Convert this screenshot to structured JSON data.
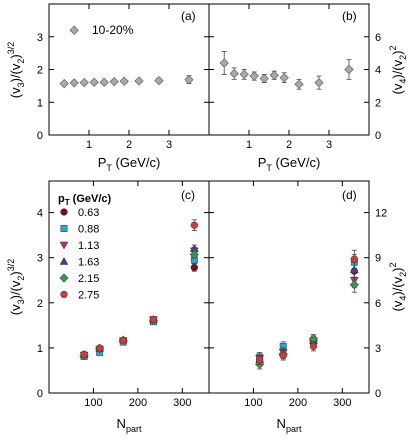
{
  "chart_data": [
    {
      "type": "scatter",
      "panel_label": "(a)",
      "annotation": "10-20%",
      "xlabel": "P_T (GeV/c)",
      "ylabel": "(v_3)/(v_2)^{3/2}",
      "xlim": [
        0,
        4
      ],
      "ylim": [
        0,
        4
      ],
      "x_ticks": [
        1,
        2,
        3
      ],
      "y_ticks": [
        0,
        1,
        2,
        3
      ],
      "series": [
        {
          "marker": "diamond",
          "color": "#a8a8a8",
          "x": [
            0.38,
            0.63,
            0.88,
            1.13,
            1.38,
            1.63,
            1.88,
            2.25,
            2.75,
            3.5
          ],
          "y": [
            1.57,
            1.59,
            1.6,
            1.61,
            1.61,
            1.63,
            1.64,
            1.65,
            1.66,
            1.69
          ],
          "err": [
            0.02,
            0.02,
            0.02,
            0.02,
            0.02,
            0.02,
            0.02,
            0.03,
            0.04,
            0.12
          ]
        }
      ],
      "legend_marker": {
        "x": 0.63,
        "y": 3.2,
        "marker": "diamond",
        "color": "#a8a8a8"
      }
    },
    {
      "type": "scatter",
      "panel_label": "(b)",
      "xlabel": "P_T (GeV/c)",
      "ylabel": "(v_4)/(v_2)^2",
      "xlim": [
        0,
        4
      ],
      "ylim": [
        0,
        8
      ],
      "x_ticks": [
        1,
        2,
        3
      ],
      "y_ticks": [
        0,
        2,
        4,
        6
      ],
      "series": [
        {
          "marker": "diamond",
          "color": "#a8a8a8",
          "x": [
            0.38,
            0.63,
            0.88,
            1.13,
            1.38,
            1.63,
            1.88,
            2.25,
            2.75,
            3.5
          ],
          "y": [
            4.4,
            3.75,
            3.7,
            3.6,
            3.45,
            3.65,
            3.5,
            3.1,
            3.2,
            4.0
          ],
          "err": [
            0.7,
            0.35,
            0.3,
            0.25,
            0.25,
            0.25,
            0.3,
            0.3,
            0.4,
            0.6
          ]
        }
      ]
    },
    {
      "type": "scatter",
      "panel_label": "(c)",
      "xlabel": "N_part",
      "ylabel": "(v_3)/(v_2)^{3/2}",
      "xlim": [
        0,
        360
      ],
      "ylim": [
        0,
        4.7
      ],
      "x_ticks": [
        100,
        200,
        300
      ],
      "y_ticks": [
        0,
        1,
        2,
        3,
        4
      ],
      "legend_title": "p_T (GeV/c)",
      "legend_position": "top-left",
      "series": [
        {
          "name": "0.63",
          "marker": "circle",
          "color": "#7a0d16",
          "x": [
            79,
            114,
            167,
            235,
            327
          ],
          "y": [
            0.82,
            0.95,
            1.16,
            1.6,
            2.78
          ],
          "err": [
            0.05,
            0.05,
            0.05,
            0.05,
            0.08
          ]
        },
        {
          "name": "0.88",
          "marker": "square",
          "color": "#2aa6d6",
          "x": [
            79,
            114,
            167,
            235,
            327
          ],
          "y": [
            0.81,
            0.9,
            1.13,
            1.58,
            2.95
          ],
          "err": [
            0.05,
            0.05,
            0.05,
            0.05,
            0.08
          ]
        },
        {
          "name": "1.13",
          "marker": "tri-down",
          "color": "#b52a86",
          "x": [
            79,
            114,
            167,
            235,
            327
          ],
          "y": [
            0.84,
            0.97,
            1.16,
            1.63,
            3.15
          ],
          "err": [
            0.05,
            0.05,
            0.05,
            0.05,
            0.08
          ]
        },
        {
          "name": "1.63",
          "marker": "tri-up",
          "color": "#3d4496",
          "x": [
            79,
            114,
            167,
            235,
            327
          ],
          "y": [
            0.85,
            0.99,
            1.18,
            1.63,
            3.2
          ],
          "err": [
            0.05,
            0.05,
            0.05,
            0.05,
            0.08
          ]
        },
        {
          "name": "2.15",
          "marker": "diamond",
          "color": "#2c9a4a",
          "x": [
            79,
            114,
            167,
            235,
            327
          ],
          "y": [
            0.83,
            0.98,
            1.17,
            1.61,
            3.07
          ],
          "err": [
            0.05,
            0.05,
            0.05,
            0.05,
            0.08
          ]
        },
        {
          "name": "2.75",
          "marker": "circle",
          "color": "#d23a3a",
          "x": [
            79,
            114,
            167,
            235,
            327
          ],
          "y": [
            0.86,
            1.0,
            1.16,
            1.63,
            3.72
          ],
          "err": [
            0.05,
            0.05,
            0.05,
            0.05,
            0.12
          ]
        }
      ]
    },
    {
      "type": "scatter",
      "panel_label": "(d)",
      "xlabel": "N_part",
      "ylabel": "(v_4)/(v_2)^2",
      "xlim": [
        0,
        360
      ],
      "ylim": [
        0,
        14.1
      ],
      "x_ticks": [
        100,
        200,
        300
      ],
      "y_ticks": [
        0,
        3,
        6,
        9,
        12
      ],
      "series": [
        {
          "name": "0.63",
          "marker": "circle",
          "color": "#7a0d16",
          "x": [
            114,
            167,
            235,
            327
          ],
          "y": [
            2.1,
            2.5,
            3.3,
            8.1
          ],
          "err": [
            0.3,
            0.3,
            0.3,
            0.5
          ]
        },
        {
          "name": "0.88",
          "marker": "square",
          "color": "#2aa6d6",
          "x": [
            114,
            167,
            235,
            327
          ],
          "y": [
            2.4,
            3.1,
            3.5,
            8.7
          ],
          "err": [
            0.3,
            0.3,
            0.3,
            0.5
          ]
        },
        {
          "name": "1.13",
          "marker": "tri-down",
          "color": "#b52a86",
          "x": [
            114,
            167,
            235,
            327
          ],
          "y": [
            2.3,
            2.7,
            3.3,
            7.5
          ],
          "err": [
            0.3,
            0.3,
            0.3,
            0.5
          ]
        },
        {
          "name": "1.63",
          "marker": "tri-up",
          "color": "#3d4496",
          "x": [
            114,
            167,
            235,
            327
          ],
          "y": [
            2.2,
            2.7,
            3.5,
            8.2
          ],
          "err": [
            0.3,
            0.3,
            0.3,
            0.5
          ]
        },
        {
          "name": "2.15",
          "marker": "diamond",
          "color": "#2c9a4a",
          "x": [
            114,
            167,
            235,
            327
          ],
          "y": [
            1.9,
            2.6,
            3.6,
            7.2
          ],
          "err": [
            0.3,
            0.3,
            0.3,
            0.5
          ]
        },
        {
          "name": "2.75",
          "marker": "circle",
          "color": "#d23a3a",
          "x": [
            114,
            167,
            235,
            327
          ],
          "y": [
            2.2,
            2.5,
            3.1,
            8.9
          ],
          "err": [
            0.3,
            0.3,
            0.3,
            0.6
          ]
        }
      ]
    }
  ]
}
